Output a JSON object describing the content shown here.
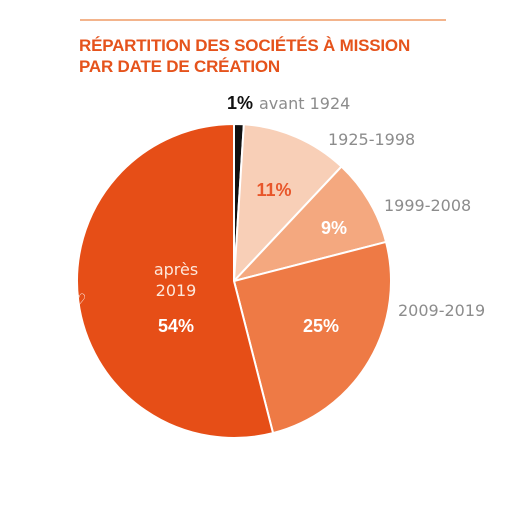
{
  "title": {
    "line1": "RÉPARTITION DES SOCIÉTÉS À MISSION",
    "line2": "PAR DATE DE CRÉATION"
  },
  "colors": {
    "title": "#e5531c",
    "rule": "#f3b48c",
    "label_gray": "#8c8c8c"
  },
  "decor": {
    "heart_glyph": "♡"
  },
  "chart_data": {
    "type": "pie",
    "title": "RÉPARTITION DES SOCIÉTÉS À MISSION PAR DATE DE CRÉATION",
    "start_angle_deg": 0,
    "direction": "clockwise",
    "slices": [
      {
        "label": "avant 1924",
        "value": 1,
        "value_label": "1%",
        "color": "#111111",
        "label_position": "outside-top"
      },
      {
        "label": "1925-1998",
        "value": 11,
        "value_label": "11%",
        "color": "#f8cfb7",
        "label_position": "outside-right"
      },
      {
        "label": "1999-2008",
        "value": 9,
        "value_label": "9%",
        "color": "#f4a87f",
        "label_position": "outside-right"
      },
      {
        "label": "2009-2019",
        "value": 25,
        "value_label": "25%",
        "color": "#ee7a45",
        "label_position": "outside-right"
      },
      {
        "label": "après 2019",
        "label_lines": [
          "après",
          "2019"
        ],
        "value": 54,
        "value_label": "54%",
        "color": "#e64e17",
        "label_position": "inside"
      }
    ]
  }
}
